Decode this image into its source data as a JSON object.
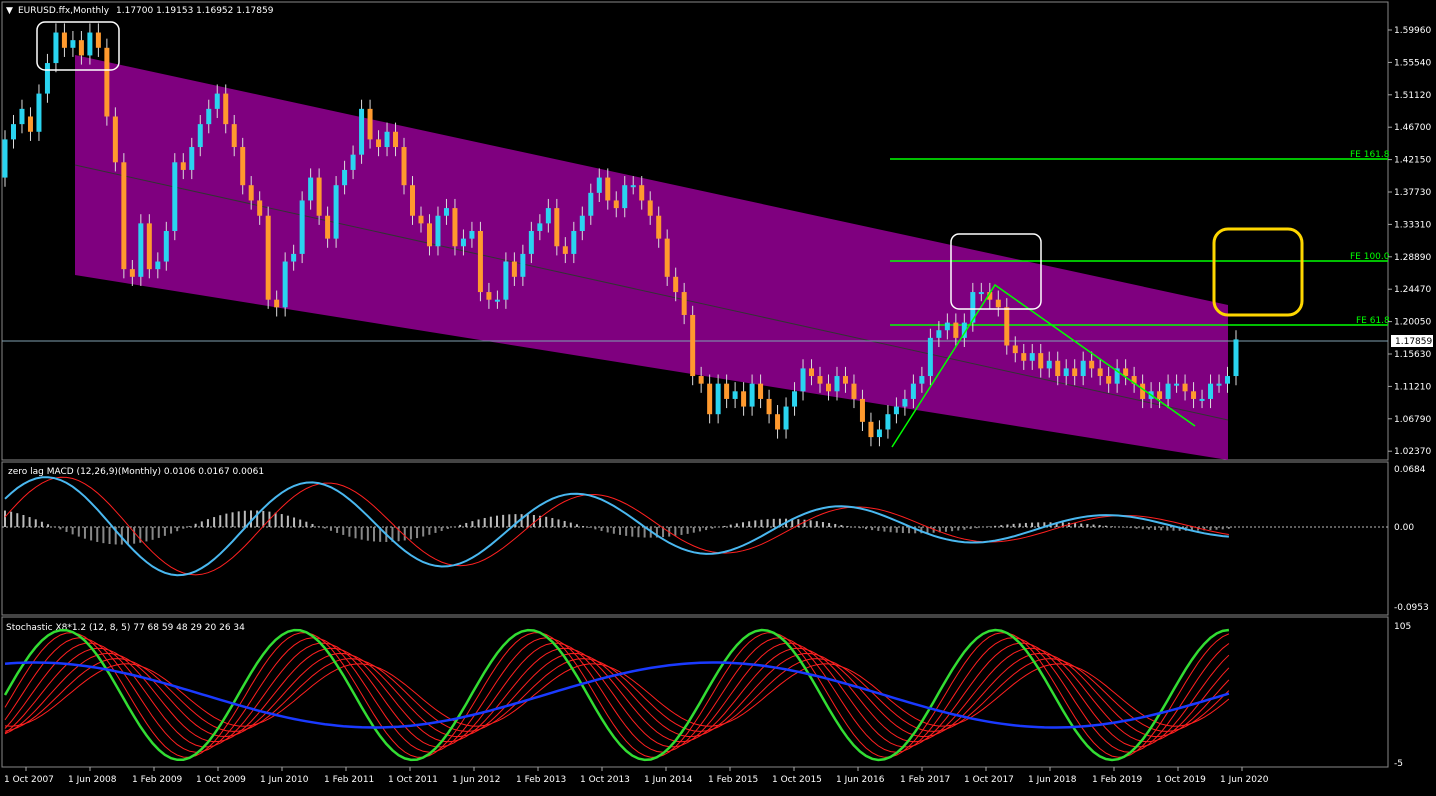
{
  "main_panel": {
    "title": "EURUSD.ffx,Monthly",
    "ohlc": "1.17700 1.19153 1.16952 1.17859",
    "price_labels": [
      "1.59960",
      "1.55540",
      "1.51120",
      "1.46700",
      "1.42150",
      "1.37730",
      "1.33310",
      "1.28890",
      "1.24470",
      "1.20050",
      "1.15630",
      "1.11210",
      "1.06790",
      "1.02370"
    ],
    "current_price": "1.17859",
    "fib_labels": {
      "fe1618": "FE 161.8",
      "fe1000": "FE 100.0",
      "fe618": "FE 61.8"
    },
    "colors": {
      "bull": "#2ad4f0",
      "bear": "#ff9a2e",
      "channel": "#7f007f",
      "fib": "#00ff00",
      "highlight": "#ffd700"
    }
  },
  "macd_panel": {
    "title": "zero lag MACD (12,26,9)(Monthly) 0.0106 0.0167 0.0061",
    "scale": [
      "0.0684",
      "0.00",
      "-0.0953"
    ]
  },
  "stoch_panel": {
    "title": "Stochastic X8*1.2 (12, 8, 5) 77 68 59 48 29 20 26 34",
    "scale": [
      "105",
      "-5"
    ]
  },
  "time_axis": [
    "1 Oct 2007",
    "1 Jun 2008",
    "1 Feb 2009",
    "1 Oct 2009",
    "1 Jun 2010",
    "1 Feb 2011",
    "1 Oct 2011",
    "1 Jun 2012",
    "1 Feb 2013",
    "1 Oct 2013",
    "1 Jun 2014",
    "1 Feb 2015",
    "1 Oct 2015",
    "1 Jun 2016",
    "1 Feb 2017",
    "1 Oct 2017",
    "1 Jun 2018",
    "1 Feb 2019",
    "1 Oct 2019",
    "1 Jun 2020"
  ],
  "chart_data": {
    "type": "candlestick",
    "title": "EURUSD.ffx,Monthly",
    "ylim": [
      1.02,
      1.62
    ],
    "points": [
      [
        1.39,
        1.44
      ],
      [
        1.44,
        1.46
      ],
      [
        1.46,
        1.48
      ],
      [
        1.47,
        1.45
      ],
      [
        1.45,
        1.5
      ],
      [
        1.5,
        1.54
      ],
      [
        1.54,
        1.58
      ],
      [
        1.58,
        1.56
      ],
      [
        1.56,
        1.57
      ],
      [
        1.57,
        1.55
      ],
      [
        1.55,
        1.58
      ],
      [
        1.58,
        1.56
      ],
      [
        1.56,
        1.47
      ],
      [
        1.47,
        1.41
      ],
      [
        1.41,
        1.27
      ],
      [
        1.27,
        1.26
      ],
      [
        1.26,
        1.33
      ],
      [
        1.33,
        1.27
      ],
      [
        1.27,
        1.28
      ],
      [
        1.28,
        1.32
      ],
      [
        1.32,
        1.41
      ],
      [
        1.41,
        1.4
      ],
      [
        1.4,
        1.43
      ],
      [
        1.43,
        1.46
      ],
      [
        1.46,
        1.48
      ],
      [
        1.48,
        1.5
      ],
      [
        1.5,
        1.46
      ],
      [
        1.46,
        1.43
      ],
      [
        1.43,
        1.38
      ],
      [
        1.38,
        1.36
      ],
      [
        1.36,
        1.34
      ],
      [
        1.34,
        1.23
      ],
      [
        1.23,
        1.22
      ],
      [
        1.22,
        1.28
      ],
      [
        1.28,
        1.29
      ],
      [
        1.29,
        1.36
      ],
      [
        1.36,
        1.39
      ],
      [
        1.39,
        1.34
      ],
      [
        1.34,
        1.31
      ],
      [
        1.31,
        1.38
      ],
      [
        1.38,
        1.4
      ],
      [
        1.4,
        1.42
      ],
      [
        1.42,
        1.48
      ],
      [
        1.48,
        1.44
      ],
      [
        1.44,
        1.43
      ],
      [
        1.43,
        1.45
      ],
      [
        1.45,
        1.43
      ],
      [
        1.43,
        1.38
      ],
      [
        1.38,
        1.34
      ],
      [
        1.34,
        1.33
      ],
      [
        1.33,
        1.3
      ],
      [
        1.3,
        1.34
      ],
      [
        1.34,
        1.35
      ],
      [
        1.35,
        1.3
      ],
      [
        1.3,
        1.31
      ],
      [
        1.31,
        1.32
      ],
      [
        1.32,
        1.24
      ],
      [
        1.24,
        1.23
      ],
      [
        1.23,
        1.23
      ],
      [
        1.23,
        1.28
      ],
      [
        1.28,
        1.26
      ],
      [
        1.26,
        1.29
      ],
      [
        1.29,
        1.32
      ],
      [
        1.32,
        1.33
      ],
      [
        1.33,
        1.35
      ],
      [
        1.35,
        1.3
      ],
      [
        1.3,
        1.29
      ],
      [
        1.29,
        1.32
      ],
      [
        1.32,
        1.34
      ],
      [
        1.34,
        1.37
      ],
      [
        1.37,
        1.39
      ],
      [
        1.39,
        1.36
      ],
      [
        1.36,
        1.35
      ],
      [
        1.35,
        1.38
      ],
      [
        1.38,
        1.38
      ],
      [
        1.38,
        1.36
      ],
      [
        1.36,
        1.34
      ],
      [
        1.34,
        1.31
      ],
      [
        1.31,
        1.26
      ],
      [
        1.26,
        1.24
      ],
      [
        1.24,
        1.21
      ],
      [
        1.21,
        1.13
      ],
      [
        1.13,
        1.12
      ],
      [
        1.12,
        1.08
      ],
      [
        1.08,
        1.12
      ],
      [
        1.12,
        1.1
      ],
      [
        1.1,
        1.11
      ],
      [
        1.11,
        1.09
      ],
      [
        1.09,
        1.12
      ],
      [
        1.12,
        1.1
      ],
      [
        1.1,
        1.08
      ],
      [
        1.08,
        1.06
      ],
      [
        1.06,
        1.09
      ],
      [
        1.09,
        1.11
      ],
      [
        1.11,
        1.14
      ],
      [
        1.14,
        1.13
      ],
      [
        1.13,
        1.12
      ],
      [
        1.12,
        1.11
      ],
      [
        1.11,
        1.13
      ],
      [
        1.13,
        1.12
      ],
      [
        1.12,
        1.1
      ],
      [
        1.1,
        1.07
      ],
      [
        1.07,
        1.05
      ],
      [
        1.05,
        1.06
      ],
      [
        1.06,
        1.08
      ],
      [
        1.08,
        1.09
      ],
      [
        1.09,
        1.1
      ],
      [
        1.1,
        1.12
      ],
      [
        1.12,
        1.13
      ],
      [
        1.13,
        1.18
      ],
      [
        1.18,
        1.19
      ],
      [
        1.19,
        1.2
      ],
      [
        1.2,
        1.18
      ],
      [
        1.18,
        1.2
      ],
      [
        1.2,
        1.24
      ],
      [
        1.24,
        1.24
      ],
      [
        1.24,
        1.23
      ],
      [
        1.23,
        1.22
      ],
      [
        1.22,
        1.17
      ],
      [
        1.17,
        1.16
      ],
      [
        1.16,
        1.15
      ],
      [
        1.15,
        1.16
      ],
      [
        1.16,
        1.14
      ],
      [
        1.14,
        1.15
      ],
      [
        1.15,
        1.13
      ],
      [
        1.13,
        1.14
      ],
      [
        1.14,
        1.13
      ],
      [
        1.13,
        1.15
      ],
      [
        1.15,
        1.14
      ],
      [
        1.14,
        1.13
      ],
      [
        1.13,
        1.12
      ],
      [
        1.12,
        1.14
      ],
      [
        1.14,
        1.13
      ],
      [
        1.13,
        1.12
      ],
      [
        1.12,
        1.1
      ],
      [
        1.1,
        1.11
      ],
      [
        1.11,
        1.1
      ],
      [
        1.1,
        1.12
      ],
      [
        1.12,
        1.12
      ],
      [
        1.12,
        1.11
      ],
      [
        1.11,
        1.1
      ],
      [
        1.1,
        1.1
      ],
      [
        1.1,
        1.12
      ],
      [
        1.12,
        1.12
      ],
      [
        1.12,
        1.13
      ],
      [
        1.13,
        1.178
      ]
    ]
  }
}
